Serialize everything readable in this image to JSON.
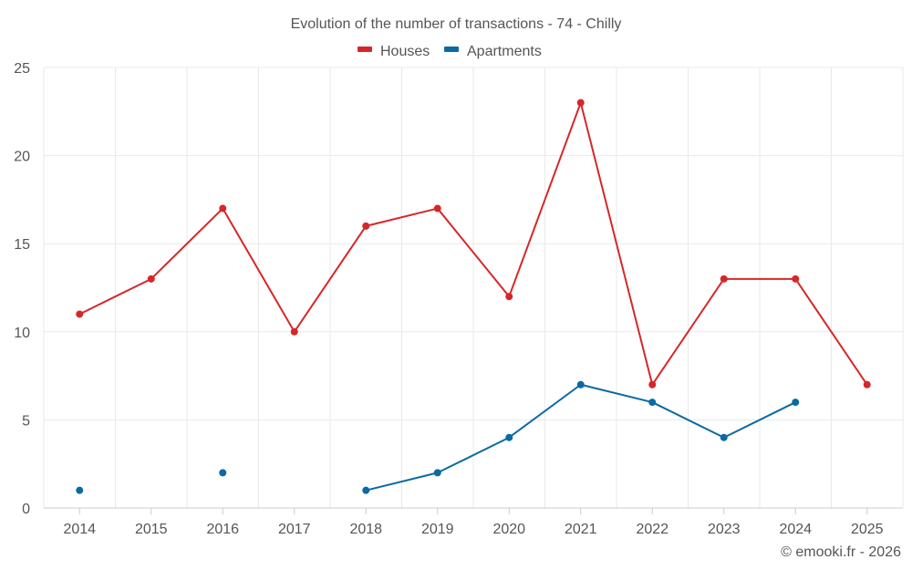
{
  "chart_data": {
    "type": "line",
    "title": "Evolution of the number of transactions - 74 - Chilly",
    "x": [
      "2014",
      "2015",
      "2016",
      "2017",
      "2018",
      "2019",
      "2020",
      "2021",
      "2022",
      "2023",
      "2024",
      "2025"
    ],
    "ylim": [
      0,
      25
    ],
    "yticks": [
      "0",
      "5",
      "10",
      "15",
      "20",
      "25"
    ],
    "grid": true,
    "legend_position": "top-center",
    "series": [
      {
        "name": "Houses",
        "color": "#d62728",
        "values": [
          11,
          13,
          17,
          10,
          16,
          17,
          12,
          23,
          7,
          13,
          13,
          7
        ]
      },
      {
        "name": "Apartments",
        "color": "#0a6aa1",
        "values": [
          1,
          null,
          2,
          null,
          1,
          2,
          4,
          7,
          6,
          4,
          6,
          null
        ]
      }
    ]
  },
  "credit": "© emooki.fr - 2026"
}
